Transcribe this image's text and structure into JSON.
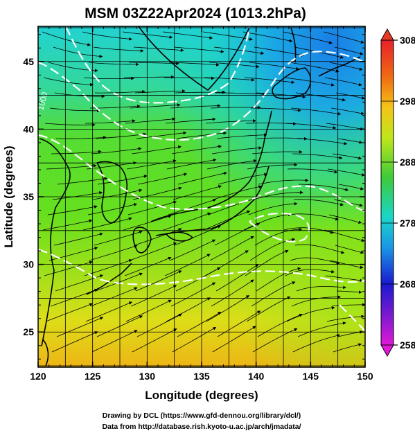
{
  "title": "MSM 03Z22Apr2024 (1013.2hPa)",
  "x_axis": {
    "label": "Longitude (degrees)",
    "ticks": [
      120,
      125,
      130,
      135,
      140,
      145,
      150
    ],
    "tick_labels": [
      "120",
      "125",
      "130",
      "135",
      "140",
      "145",
      "150"
    ],
    "range": [
      120,
      150
    ]
  },
  "y_axis": {
    "label": "Latitude  (degrees)",
    "ticks": [
      25,
      30,
      35,
      40,
      45
    ],
    "tick_labels": [
      "25",
      "30",
      "35",
      "40",
      "45"
    ],
    "range": [
      22.4,
      47.6
    ]
  },
  "colorbar": {
    "labels": [
      "308",
      "298",
      "288",
      "278",
      "268",
      "258"
    ],
    "values": [
      308,
      298,
      288,
      278,
      268,
      258
    ],
    "colors": {
      "magenta": "#d60fd6",
      "blue": "#1a1ad9",
      "cyan": "#19d2e6",
      "green": "#2cc83a",
      "yellow": "#f2f21a",
      "orange": "#f5a010",
      "red": "#e83a22"
    }
  },
  "contour_label": "1000",
  "credits": {
    "line1": "Drawing by DCL (https://www.gfd-dennou.org/library/dcl/)",
    "line2": "Data from http://database.rish.kyoto-u.ac.jp/arch/jmadata/"
  }
}
